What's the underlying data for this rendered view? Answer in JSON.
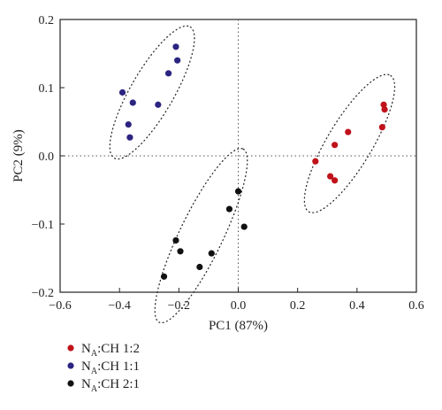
{
  "chart_data": {
    "type": "scatter",
    "xlabel": "PC1 (87%)",
    "ylabel": "PC2 (9%)",
    "xlim": [
      -0.6,
      0.6
    ],
    "ylim": [
      -0.2,
      0.2
    ],
    "xticks": [
      "−0.6",
      "−0.4",
      "−0.2",
      "0.0",
      "0.2",
      "0.4",
      "0.6"
    ],
    "xtick_values": [
      -0.6,
      -0.4,
      -0.2,
      0.0,
      0.2,
      0.4,
      0.6
    ],
    "yticks": [
      "0.2",
      "0.1",
      "0.0",
      "−0.1",
      "−0.2"
    ],
    "ytick_values": [
      0.2,
      0.1,
      0.0,
      -0.1,
      -0.2
    ],
    "zero_lines": "dotted",
    "legend_position": "bottom-left",
    "series": [
      {
        "legend": {
          "main": "N",
          "sub": "A",
          "rest": ":CH 1:2"
        },
        "color": "#c0121b",
        "points": [
          [
            0.49,
            0.075
          ],
          [
            0.493,
            0.068
          ],
          [
            0.485,
            0.042
          ],
          [
            0.37,
            0.035
          ],
          [
            0.325,
            0.016
          ],
          [
            0.26,
            -0.008
          ],
          [
            0.31,
            -0.03
          ],
          [
            0.325,
            -0.036
          ]
        ],
        "ellipse": {
          "cx": 0.375,
          "cy": 0.018,
          "rx": 0.17,
          "ry": 0.05,
          "angle_deg": -36
        }
      },
      {
        "legend": {
          "main": "N",
          "sub": "A",
          "rest": ":CH 1:1"
        },
        "color": "#2b2480",
        "points": [
          [
            -0.21,
            0.16
          ],
          [
            -0.205,
            0.14
          ],
          [
            -0.235,
            0.121
          ],
          [
            -0.39,
            0.093
          ],
          [
            -0.27,
            0.075
          ],
          [
            -0.355,
            0.078
          ],
          [
            -0.37,
            0.046
          ],
          [
            -0.365,
            0.027
          ]
        ],
        "ellipse": {
          "cx": -0.29,
          "cy": 0.093,
          "rx": 0.16,
          "ry": 0.048,
          "angle_deg": -37
        }
      },
      {
        "legend": {
          "main": "N",
          "sub": "A",
          "rest": ":CH 2:1"
        },
        "color": "#111111",
        "points": [
          [
            0.0,
            -0.052
          ],
          [
            -0.03,
            -0.078
          ],
          [
            0.02,
            -0.104
          ],
          [
            -0.21,
            -0.124
          ],
          [
            -0.195,
            -0.14
          ],
          [
            -0.09,
            -0.143
          ],
          [
            -0.13,
            -0.163
          ],
          [
            -0.25,
            -0.177
          ]
        ],
        "ellipse": {
          "cx": -0.125,
          "cy": -0.117,
          "rx": 0.19,
          "ry": 0.048,
          "angle_deg": -42
        }
      }
    ]
  }
}
